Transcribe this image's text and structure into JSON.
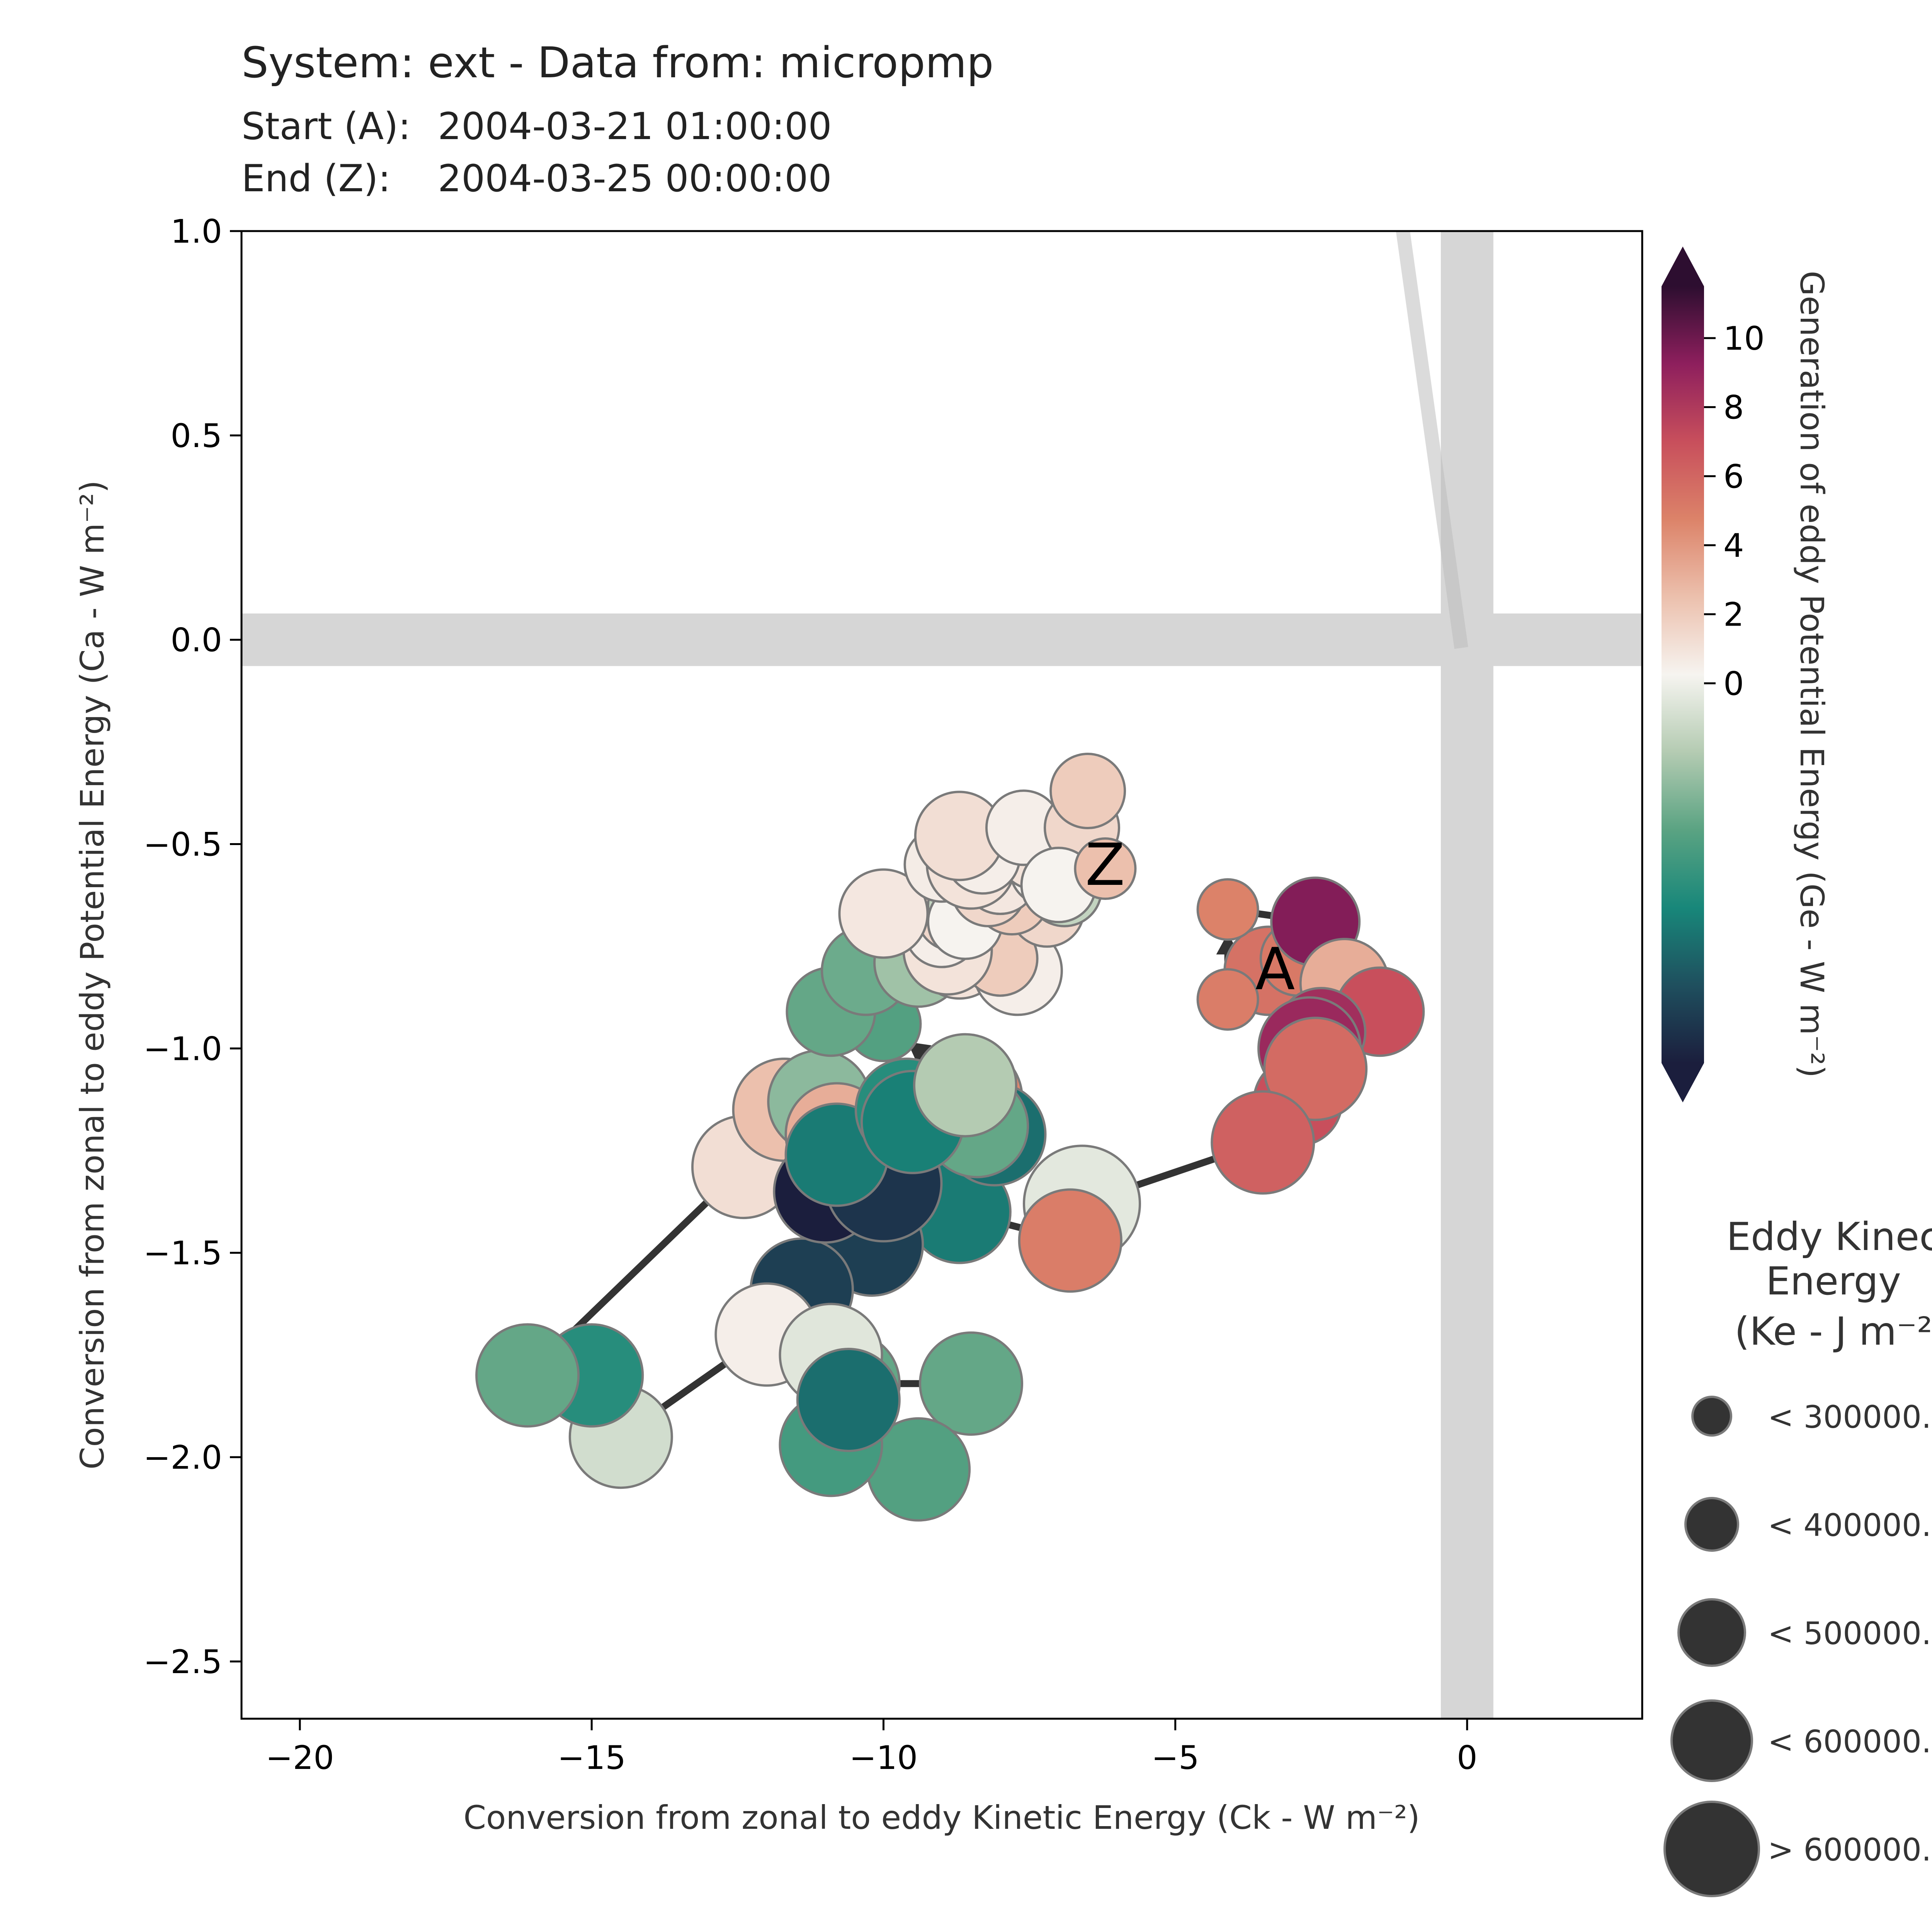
{
  "header": {
    "title": "System: ext - Data from: micropmp",
    "start_label": "Start (A):",
    "start_value": "2004-03-21 01:00:00",
    "end_label": "End (Z):",
    "end_value": "2004-03-25 00:00:00"
  },
  "chart_data": {
    "type": "scatter",
    "title": "System: ext - Data from: micropmp",
    "xlabel": "Conversion from zonal to eddy Kinetic Energy (Ck -  W m⁻²)",
    "ylabel": "Conversion from zonal to eddy Potential Energy (Ca -  W m⁻²)",
    "xlim": [
      -21.0,
      3.0
    ],
    "ylim": [
      -2.64,
      1.0
    ],
    "x_ticks": [
      -20,
      -15,
      -10,
      -5,
      0
    ],
    "y_ticks": [
      -2.5,
      -2.0,
      -1.5,
      -1.0,
      -0.5,
      0.0,
      0.5,
      1.0
    ],
    "x_tick_labels": [
      "−20",
      "−15",
      "−10",
      "−5",
      "0"
    ],
    "y_tick_labels": [
      "−2.5",
      "−2.0",
      "−1.5",
      "−1.0",
      "−0.5",
      "0.0",
      "0.5",
      "1.0"
    ],
    "grid": false,
    "zero_lines": true,
    "start_marker": "A",
    "end_marker": "Z",
    "colorbar": {
      "label": "Generation of eddy Potential Energy (Ge -  W m⁻²)",
      "min": -11,
      "max": 11.5,
      "ticks": [
        0,
        2,
        4,
        6,
        8,
        10
      ],
      "tick_labels": [
        "0",
        "2",
        "4",
        "6",
        "8",
        "10"
      ],
      "colors": [
        "#1b1e3d",
        "#1f4f5e",
        "#18877a",
        "#5aa382",
        "#b4cbb2",
        "#f6f4f0",
        "#ecc0ad",
        "#dc8369",
        "#c84f5c",
        "#8e1f5d",
        "#2d0e30"
      ]
    },
    "size_legend": {
      "title_lines": [
        "Eddy Kinec",
        "Energy",
        "(Ke -  J m⁻²"
      ],
      "labels": [
        "< 300000.",
        "< 400000.",
        "< 500000.",
        "< 600000.",
        "> 600000."
      ]
    },
    "trajectory": [
      {
        "x": -3.4,
        "y": -0.81,
        "ge": 5.5,
        "size": 3
      },
      {
        "x": -2.9,
        "y": -0.78,
        "ge": 5.2,
        "size": 2
      },
      {
        "x": -4.1,
        "y": -0.88,
        "ge": 5.0,
        "size": 1
      },
      {
        "x": -4.1,
        "y": -0.66,
        "ge": 4.8,
        "size": 1
      },
      {
        "x": -2.6,
        "y": -0.69,
        "ge": 9.5,
        "size": 3
      },
      {
        "x": -2.1,
        "y": -0.84,
        "ge": 3.2,
        "size": 3
      },
      {
        "x": -1.5,
        "y": -0.91,
        "ge": 7.0,
        "size": 3
      },
      {
        "x": -2.5,
        "y": -0.96,
        "ge": 8.5,
        "size": 3
      },
      {
        "x": -2.7,
        "y": -1.0,
        "ge": 8.8,
        "size": 4
      },
      {
        "x": -2.9,
        "y": -1.13,
        "ge": 7.0,
        "size": 3
      },
      {
        "x": -2.6,
        "y": -1.05,
        "ge": 5.8,
        "size": 4
      },
      {
        "x": -3.5,
        "y": -1.23,
        "ge": 6.2,
        "size": 4
      },
      {
        "x": -6.6,
        "y": -1.38,
        "ge": -0.4,
        "size": 5
      },
      {
        "x": -6.8,
        "y": -1.47,
        "ge": 5.0,
        "size": 4
      },
      {
        "x": -8.7,
        "y": -1.4,
        "ge": -7.0,
        "size": 4
      },
      {
        "x": -10.2,
        "y": -1.48,
        "ge": -9.5,
        "size": 4
      },
      {
        "x": -11.4,
        "y": -1.59,
        "ge": -9.5,
        "size": 4
      },
      {
        "x": -12.0,
        "y": -1.7,
        "ge": 0.5,
        "size": 4
      },
      {
        "x": -14.5,
        "y": -1.95,
        "ge": -1.0,
        "size": 4
      },
      {
        "x": -15.0,
        "y": -1.8,
        "ge": -6.0,
        "size": 4
      },
      {
        "x": -16.1,
        "y": -1.8,
        "ge": -4.0,
        "size": 4
      },
      {
        "x": -12.4,
        "y": -1.29,
        "ge": 1.2,
        "size": 4
      },
      {
        "x": -11.7,
        "y": -1.15,
        "ge": 2.5,
        "size": 4
      },
      {
        "x": -11.1,
        "y": -1.13,
        "ge": -3.0,
        "size": 4
      },
      {
        "x": -10.8,
        "y": -1.21,
        "ge": 3.2,
        "size": 4
      },
      {
        "x": -11.0,
        "y": -1.35,
        "ge": -11.0,
        "size": 4
      },
      {
        "x": -10.0,
        "y": -1.33,
        "ge": -10.0,
        "size": 5
      },
      {
        "x": -10.8,
        "y": -1.26,
        "ge": -7.0,
        "size": 4
      },
      {
        "x": -9.6,
        "y": -1.15,
        "ge": -6.0,
        "size": 4
      },
      {
        "x": -8.5,
        "y": -1.12,
        "ge": 4.6,
        "size": 4
      },
      {
        "x": -8.1,
        "y": -1.21,
        "ge": -7.5,
        "size": 4
      },
      {
        "x": -8.4,
        "y": -1.19,
        "ge": -4.0,
        "size": 4
      },
      {
        "x": -9.5,
        "y": -1.18,
        "ge": -6.8,
        "size": 4
      },
      {
        "x": -8.6,
        "y": -1.09,
        "ge": -2.0,
        "size": 4
      },
      {
        "x": -10.0,
        "y": -0.94,
        "ge": -4.5,
        "size": 2
      },
      {
        "x": -10.9,
        "y": -0.91,
        "ge": -4.0,
        "size": 3
      },
      {
        "x": -10.3,
        "y": -0.81,
        "ge": -3.8,
        "size": 3
      },
      {
        "x": -9.4,
        "y": -0.79,
        "ge": -2.5,
        "size": 3
      },
      {
        "x": -8.7,
        "y": -0.77,
        "ge": 1.0,
        "size": 3
      },
      {
        "x": -7.7,
        "y": -0.81,
        "ge": 0.5,
        "size": 3
      },
      {
        "x": -8.0,
        "y": -0.78,
        "ge": 2.0,
        "size": 2
      },
      {
        "x": -8.9,
        "y": -0.76,
        "ge": 1.0,
        "size": 3
      },
      {
        "x": -9.0,
        "y": -0.71,
        "ge": 0.5,
        "size": 2
      },
      {
        "x": -8.8,
        "y": -0.67,
        "ge": 1.5,
        "size": 2
      },
      {
        "x": -8.6,
        "y": -0.65,
        "ge": -1.5,
        "size": 2
      },
      {
        "x": -10.0,
        "y": -0.67,
        "ge": 0.8,
        "size": 3
      },
      {
        "x": -8.6,
        "y": -0.69,
        "ge": 0.3,
        "size": 2
      },
      {
        "x": -7.2,
        "y": -0.66,
        "ge": 1.5,
        "size": 2
      },
      {
        "x": -6.9,
        "y": -0.61,
        "ge": -1.5,
        "size": 2
      },
      {
        "x": -7.8,
        "y": -0.63,
        "ge": 2.0,
        "size": 2
      },
      {
        "x": -8.2,
        "y": -0.61,
        "ge": 1.5,
        "size": 2
      },
      {
        "x": -8.0,
        "y": -0.58,
        "ge": 0.8,
        "size": 2
      },
      {
        "x": -9.0,
        "y": -0.55,
        "ge": 0.6,
        "size": 2
      },
      {
        "x": -8.5,
        "y": -0.55,
        "ge": 1.0,
        "size": 3
      },
      {
        "x": -7.2,
        "y": -0.56,
        "ge": 0.4,
        "size": 2
      },
      {
        "x": -7.4,
        "y": -0.52,
        "ge": 1.0,
        "size": 2
      },
      {
        "x": -8.3,
        "y": -0.53,
        "ge": 0.5,
        "size": 2
      },
      {
        "x": -8.7,
        "y": -0.48,
        "ge": 1.2,
        "size": 3
      },
      {
        "x": -7.6,
        "y": -0.46,
        "ge": 0.5,
        "size": 2
      },
      {
        "x": -6.6,
        "y": -0.46,
        "ge": 1.5,
        "size": 2
      },
      {
        "x": -7.0,
        "y": -0.6,
        "ge": 0.3,
        "size": 2
      },
      {
        "x": -6.5,
        "y": -0.37,
        "ge": 2.0,
        "size": 2
      },
      {
        "x": -6.2,
        "y": -0.56,
        "ge": 2.5,
        "size": 1
      }
    ],
    "side_cluster": [
      {
        "x": -10.6,
        "y": -1.82,
        "ge": -4.0,
        "size": 4
      },
      {
        "x": -8.5,
        "y": -1.82,
        "ge": -4.0,
        "size": 4
      },
      {
        "x": -9.4,
        "y": -2.03,
        "ge": -4.5,
        "size": 4
      },
      {
        "x": -10.9,
        "y": -1.97,
        "ge": -5.0,
        "size": 4
      },
      {
        "x": -10.9,
        "y": -1.75,
        "ge": -0.5,
        "size": 4
      },
      {
        "x": -10.6,
        "y": -1.86,
        "ge": -7.5,
        "size": 4
      }
    ]
  }
}
